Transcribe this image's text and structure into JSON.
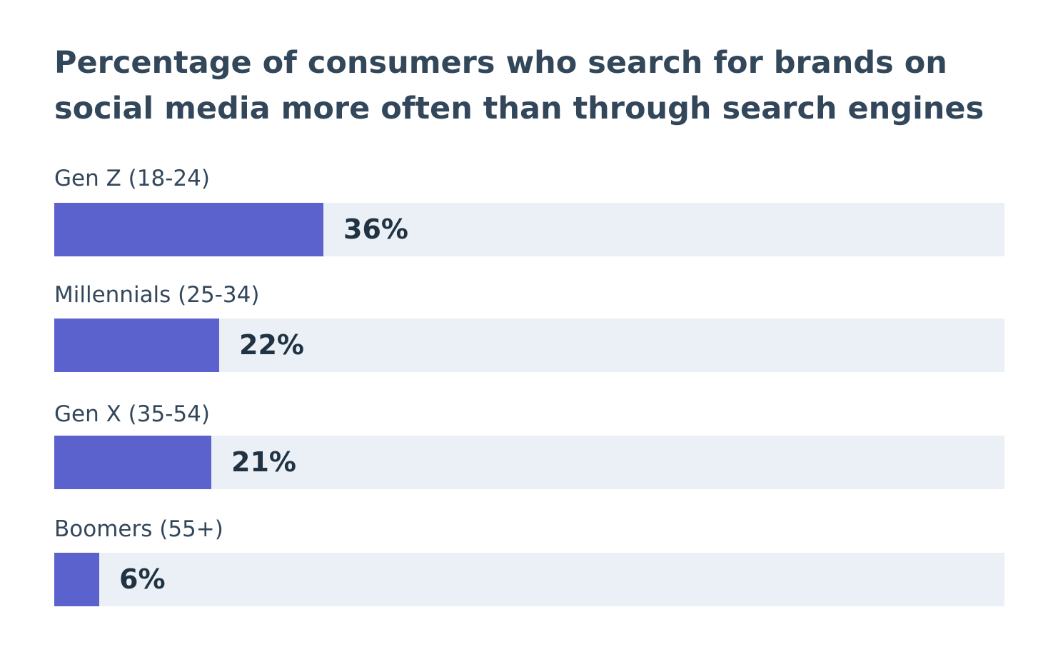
{
  "chart_data": {
    "type": "bar",
    "orientation": "horizontal",
    "title": "Percentage of consumers who search for brands on social media more often than through search engines",
    "categories": [
      "Gen Z (18-24)",
      "Millennials (25-34)",
      "Gen X (35-54)",
      "Boomers (55+)"
    ],
    "values": [
      36,
      22,
      21,
      6
    ],
    "value_labels": [
      "36%",
      "22%",
      "21%",
      "6%"
    ],
    "unit": "%",
    "xlim": [
      0,
      127
    ],
    "xlabel": "",
    "ylabel": "",
    "grid": false,
    "legend": "none",
    "colors": {
      "bar": "#5c62cd",
      "track": "#eaf0f6",
      "title": "#33475b",
      "label": "#33475b",
      "value": "#213343"
    }
  }
}
